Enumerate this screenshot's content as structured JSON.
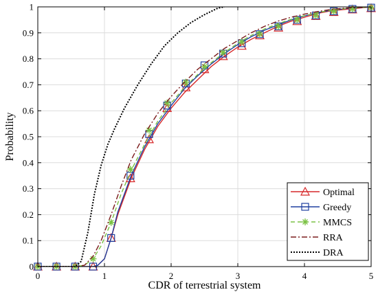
{
  "chart_data": {
    "type": "line",
    "title": "",
    "xlabel": "CDR of terrestrial system",
    "ylabel": "Probability",
    "xlim": [
      0,
      5
    ],
    "ylim": [
      0,
      1
    ],
    "xticks": [
      "0",
      "1",
      "2",
      "3",
      "4",
      "5"
    ],
    "yticks": [
      "0",
      "0.1",
      "0.2",
      "0.3",
      "0.4",
      "0.5",
      "0.6",
      "0.7",
      "0.8",
      "0.9",
      "1"
    ],
    "grid": true,
    "legend_position": "bottom-right",
    "series": [
      {
        "name": "Optimal",
        "color": "#d62728",
        "dash": "solid",
        "marker": "triangle",
        "x": [
          0,
          0.28,
          0.56,
          0.83,
          0.9,
          1.0,
          1.1,
          1.2,
          1.4,
          1.6,
          1.8,
          2.0,
          2.2,
          2.4,
          2.6,
          2.8,
          3.0,
          3.2,
          3.4,
          3.6,
          3.8,
          4.0,
          4.2,
          4.4,
          4.6,
          4.8,
          5.0
        ],
        "y": [
          0,
          0,
          0,
          0,
          0.005,
          0.03,
          0.11,
          0.2,
          0.34,
          0.45,
          0.54,
          0.61,
          0.67,
          0.72,
          0.77,
          0.81,
          0.845,
          0.875,
          0.9,
          0.925,
          0.945,
          0.96,
          0.975,
          0.985,
          0.99,
          0.995,
          1.0
        ],
        "marker_x": [
          0,
          0.28,
          0.56,
          0.83,
          1.1,
          1.39,
          1.67,
          1.94,
          2.22,
          2.5,
          2.78,
          3.06,
          3.33,
          3.61,
          3.89,
          4.17,
          4.44,
          4.72,
          5.0
        ],
        "marker_y": [
          0,
          0,
          0,
          0,
          0.11,
          0.34,
          0.49,
          0.61,
          0.69,
          0.76,
          0.81,
          0.85,
          0.89,
          0.92,
          0.945,
          0.965,
          0.98,
          0.99,
          0.995
        ]
      },
      {
        "name": "Greedy",
        "color": "#1f3f9f",
        "dash": "solid",
        "marker": "square",
        "x": [
          0,
          0.28,
          0.56,
          0.83,
          0.9,
          1.0,
          1.1,
          1.2,
          1.4,
          1.6,
          1.8,
          2.0,
          2.2,
          2.4,
          2.6,
          2.8,
          3.0,
          3.2,
          3.4,
          3.6,
          3.8,
          4.0,
          4.2,
          4.4,
          4.6,
          4.8,
          5.0
        ],
        "y": [
          0,
          0,
          0,
          0,
          0.005,
          0.03,
          0.11,
          0.21,
          0.35,
          0.46,
          0.55,
          0.62,
          0.685,
          0.735,
          0.78,
          0.82,
          0.855,
          0.885,
          0.91,
          0.93,
          0.95,
          0.965,
          0.978,
          0.987,
          0.993,
          0.997,
          1.0
        ],
        "marker_x": [
          0,
          0.28,
          0.56,
          0.83,
          1.1,
          1.39,
          1.67,
          1.94,
          2.22,
          2.5,
          2.78,
          3.06,
          3.33,
          3.61,
          3.89,
          4.17,
          4.44,
          4.72,
          5.0
        ],
        "marker_y": [
          0,
          0,
          0,
          0,
          0.11,
          0.35,
          0.51,
          0.62,
          0.705,
          0.775,
          0.82,
          0.86,
          0.895,
          0.925,
          0.95,
          0.967,
          0.983,
          0.992,
          0.997
        ]
      },
      {
        "name": "MMCS",
        "color": "#7ac143",
        "dash": "dash",
        "marker": "asterisk",
        "x": [
          0,
          0.28,
          0.56,
          0.7,
          0.83,
          0.95,
          1.1,
          1.25,
          1.4,
          1.6,
          1.8,
          2.0,
          2.2,
          2.4,
          2.6,
          2.8,
          3.0,
          3.2,
          3.4,
          3.6,
          3.8,
          4.0,
          4.2,
          4.4,
          4.6,
          4.8,
          5.0
        ],
        "y": [
          0,
          0,
          0,
          0.005,
          0.03,
          0.08,
          0.17,
          0.28,
          0.37,
          0.47,
          0.56,
          0.63,
          0.69,
          0.74,
          0.785,
          0.825,
          0.86,
          0.89,
          0.915,
          0.935,
          0.952,
          0.966,
          0.978,
          0.987,
          0.993,
          0.997,
          1.0
        ],
        "marker_x": [
          0,
          0.28,
          0.56,
          0.83,
          1.1,
          1.39,
          1.67,
          1.94,
          2.22,
          2.5,
          2.78,
          3.06,
          3.33,
          3.61,
          3.89,
          4.17,
          4.44,
          4.72,
          5.0
        ],
        "marker_y": [
          0,
          0,
          0,
          0.03,
          0.17,
          0.375,
          0.525,
          0.63,
          0.71,
          0.77,
          0.825,
          0.865,
          0.895,
          0.925,
          0.95,
          0.967,
          0.983,
          0.992,
          0.997
        ]
      },
      {
        "name": "RRA",
        "color": "#7a1a1a",
        "dash": "dashdot",
        "marker": "none",
        "x": [
          0,
          0.28,
          0.56,
          0.7,
          0.83,
          0.95,
          1.1,
          1.25,
          1.4,
          1.6,
          1.8,
          2.0,
          2.2,
          2.4,
          2.6,
          2.8,
          3.0,
          3.2,
          3.4,
          3.6,
          3.8,
          4.0,
          4.2,
          4.4,
          4.6,
          4.8,
          5.0
        ],
        "y": [
          0,
          0,
          0,
          0.005,
          0.04,
          0.1,
          0.2,
          0.31,
          0.41,
          0.51,
          0.59,
          0.655,
          0.71,
          0.76,
          0.8,
          0.84,
          0.87,
          0.9,
          0.925,
          0.945,
          0.96,
          0.972,
          0.982,
          0.99,
          0.995,
          0.998,
          1.0
        ],
        "marker_x": [],
        "marker_y": []
      },
      {
        "name": "DRA",
        "color": "#000000",
        "dash": "dot",
        "marker": "none",
        "x": [
          0,
          0.28,
          0.56,
          0.65,
          0.75,
          0.85,
          0.95,
          1.05,
          1.15,
          1.3,
          1.5,
          1.7,
          1.9,
          2.1,
          2.3,
          2.5,
          2.7,
          2.8
        ],
        "y": [
          0,
          0,
          0,
          0.02,
          0.13,
          0.28,
          0.39,
          0.47,
          0.53,
          0.61,
          0.7,
          0.78,
          0.85,
          0.9,
          0.94,
          0.97,
          0.995,
          1.0
        ],
        "marker_x": [],
        "marker_y": []
      }
    ]
  }
}
